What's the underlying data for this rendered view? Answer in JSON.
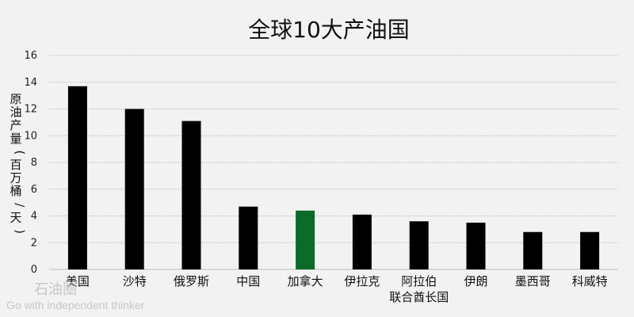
{
  "chart_data": {
    "type": "bar",
    "title": "全球10大产油国",
    "ylabel": "原油产量(百万桶/天)",
    "xlabel": "",
    "ylim": [
      0,
      16
    ],
    "yticks": [
      0,
      2,
      4,
      6,
      8,
      10,
      12,
      14,
      16
    ],
    "grid": true,
    "categories": [
      "美国",
      "沙特",
      "俄罗斯",
      "中国",
      "加拿大",
      "伊拉克",
      "阿拉伯联合酋长国",
      "伊朗",
      "墨西哥",
      "科威特"
    ],
    "category_lines": [
      [
        "美国"
      ],
      [
        "沙特"
      ],
      [
        "俄罗斯"
      ],
      [
        "中国"
      ],
      [
        "加拿大"
      ],
      [
        "伊拉克"
      ],
      [
        "阿拉伯",
        "联合酋长国"
      ],
      [
        "伊朗"
      ],
      [
        "墨西哥"
      ],
      [
        "科威特"
      ]
    ],
    "values": [
      13.7,
      12.0,
      11.1,
      4.7,
      4.4,
      4.1,
      3.6,
      3.5,
      2.8,
      2.8
    ],
    "bar_colors": [
      "#000000",
      "#000000",
      "#000000",
      "#000000",
      "#0a6b2a",
      "#000000",
      "#000000",
      "#000000",
      "#000000",
      "#000000"
    ]
  },
  "watermark": {
    "main": "石油圈",
    "sub": "Go with independent thinker"
  }
}
